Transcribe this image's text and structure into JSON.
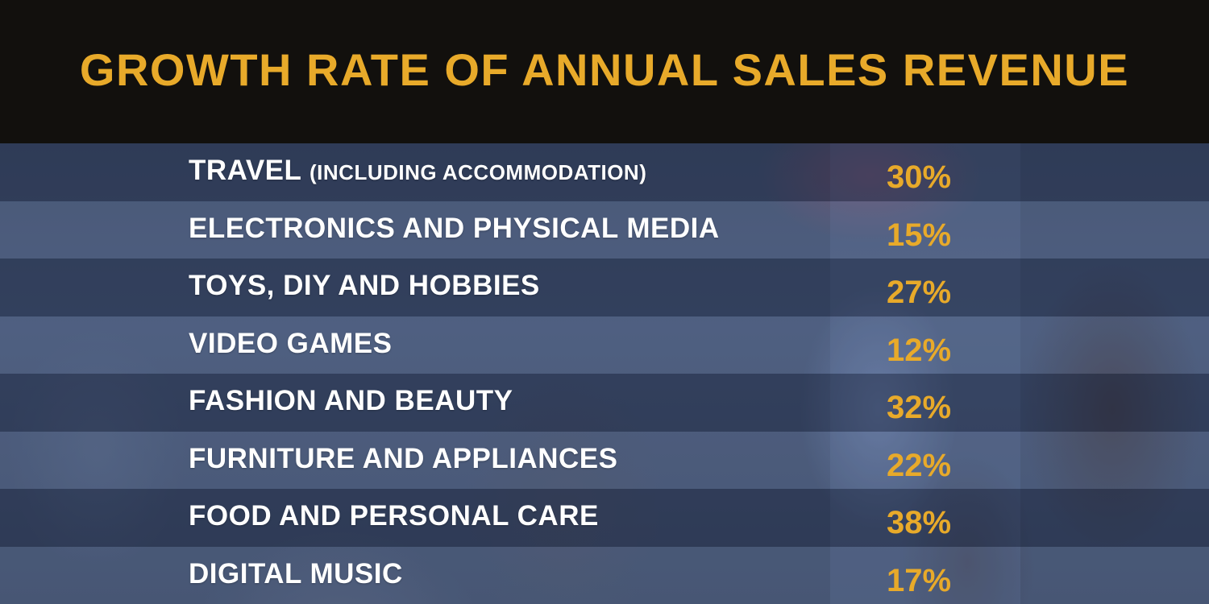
{
  "title": "GROWTH RATE OF ANNUAL SALES REVENUE",
  "colors": {
    "title_bar_bg": "#12100d",
    "accent": "#e8aa2a",
    "label_text": "#ffffff"
  },
  "chart_data": {
    "type": "table",
    "title": "GROWTH RATE OF ANNUAL SALES REVENUE",
    "rows": [
      {
        "category": "TRAVEL",
        "detail": "(INCLUDING ACCOMMODATION)",
        "value": "30%"
      },
      {
        "category": "ELECTRONICS AND PHYSICAL MEDIA",
        "detail": "",
        "value": "15%"
      },
      {
        "category": "TOYS, DIY AND HOBBIES",
        "detail": "",
        "value": "27%"
      },
      {
        "category": "VIDEO GAMES",
        "detail": "",
        "value": "12%"
      },
      {
        "category": "FASHION AND BEAUTY",
        "detail": "",
        "value": "32%"
      },
      {
        "category": "FURNITURE AND APPLIANCES",
        "detail": "",
        "value": "22%"
      },
      {
        "category": "FOOD AND PERSONAL CARE",
        "detail": "",
        "value": "38%"
      },
      {
        "category": "DIGITAL MUSIC",
        "detail": "",
        "value": "17%"
      }
    ]
  }
}
